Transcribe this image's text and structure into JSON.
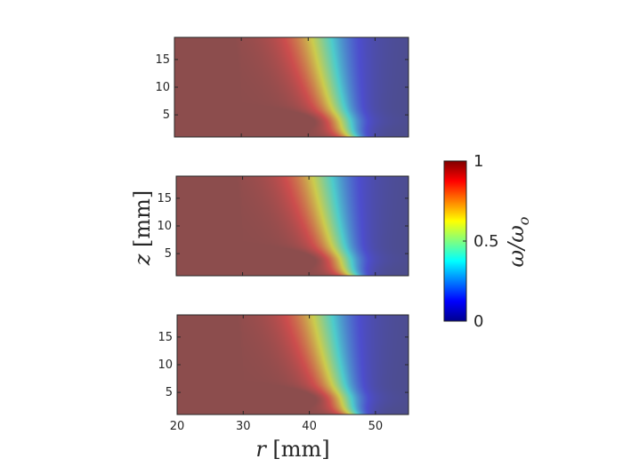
{
  "chart_data": {
    "type": "heatmap",
    "panels": [
      {
        "name": "top",
        "xlim": [
          20,
          55
        ],
        "ylim": [
          1,
          19
        ],
        "yticks": [
          5,
          10,
          15
        ],
        "show_xticks": false
      },
      {
        "name": "middle",
        "xlim": [
          20,
          55
        ],
        "ylim": [
          1,
          19
        ],
        "yticks": [
          5,
          10,
          15
        ],
        "show_xticks": false
      },
      {
        "name": "bottom",
        "xlim": [
          20,
          55
        ],
        "ylim": [
          1,
          19
        ],
        "yticks": [
          5,
          10,
          15
        ],
        "show_xticks": true
      }
    ],
    "xticks": [
      20,
      30,
      40,
      50
    ],
    "xlabel": "r [mm]",
    "ylabel": "z [mm]",
    "colorbar": {
      "label": "ω/ω_o",
      "range": [
        0,
        1
      ],
      "ticks": [
        0,
        0.5,
        1
      ],
      "tick_labels": [
        "0",
        "0.5",
        "1"
      ],
      "colormap": "jet",
      "overlay_alpha": 0.5
    },
    "field": {
      "description_free": true,
      "front_r_at_z_top": 42,
      "front_r_at_z_bottom": 47,
      "front_width_mm": 8,
      "bottom_dark_band_z": 4
    },
    "colors": {
      "axes_edge": "#262626",
      "background": "#ffffff"
    }
  }
}
